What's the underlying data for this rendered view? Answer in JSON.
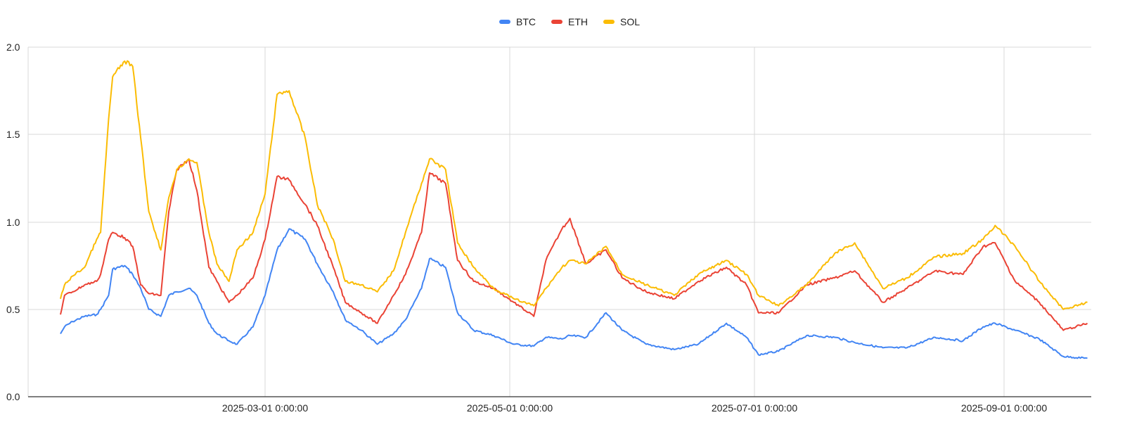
{
  "chart_data": {
    "type": "line",
    "title": "",
    "xlabel": "",
    "ylabel": "",
    "ylim": [
      0.0,
      2.0
    ],
    "grid": true,
    "legend_position": "top",
    "y_ticks": [
      "0.0",
      "0.5",
      "1.0",
      "1.5",
      "2.0"
    ],
    "x_ticks": [
      "2025-03-01 0:00:00",
      "2025-05-01 0:00:00",
      "2025-07-01 0:00:00",
      "2025-09-01 0:00:00"
    ],
    "x": [
      "2025-01-09",
      "2025-01-10",
      "2025-01-12",
      "2025-01-15",
      "2025-01-18",
      "2025-01-19",
      "2025-01-21",
      "2025-01-22",
      "2025-01-25",
      "2025-01-27",
      "2025-01-29",
      "2025-01-31",
      "2025-02-03",
      "2025-02-05",
      "2025-02-07",
      "2025-02-10",
      "2025-02-12",
      "2025-02-15",
      "2025-02-17",
      "2025-02-20",
      "2025-02-22",
      "2025-02-26",
      "2025-03-01",
      "2025-03-04",
      "2025-03-07",
      "2025-03-11",
      "2025-03-14",
      "2025-03-18",
      "2025-03-21",
      "2025-03-25",
      "2025-03-29",
      "2025-04-02",
      "2025-04-05",
      "2025-04-09",
      "2025-04-11",
      "2025-04-15",
      "2025-04-18",
      "2025-04-22",
      "2025-04-27",
      "2025-05-02",
      "2025-05-07",
      "2025-05-10",
      "2025-05-14",
      "2025-05-16",
      "2025-05-20",
      "2025-05-25",
      "2025-05-29",
      "2025-06-04",
      "2025-06-11",
      "2025-06-17",
      "2025-06-24",
      "2025-06-29",
      "2025-07-02",
      "2025-07-07",
      "2025-07-14",
      "2025-07-21",
      "2025-07-26",
      "2025-08-02",
      "2025-08-08",
      "2025-08-15",
      "2025-08-22",
      "2025-08-27",
      "2025-08-30",
      "2025-09-04",
      "2025-09-10",
      "2025-09-16",
      "2025-09-22"
    ],
    "series": [
      {
        "name": "BTC",
        "color": "#4285F4",
        "values": [
          0.36,
          0.4,
          0.43,
          0.46,
          0.47,
          0.5,
          0.58,
          0.73,
          0.75,
          0.7,
          0.62,
          0.5,
          0.46,
          0.58,
          0.6,
          0.62,
          0.58,
          0.42,
          0.36,
          0.32,
          0.3,
          0.4,
          0.58,
          0.84,
          0.96,
          0.9,
          0.76,
          0.6,
          0.44,
          0.38,
          0.3,
          0.36,
          0.44,
          0.62,
          0.79,
          0.74,
          0.48,
          0.38,
          0.35,
          0.3,
          0.29,
          0.34,
          0.33,
          0.35,
          0.34,
          0.48,
          0.38,
          0.3,
          0.27,
          0.3,
          0.42,
          0.34,
          0.24,
          0.26,
          0.35,
          0.34,
          0.31,
          0.28,
          0.28,
          0.34,
          0.32,
          0.4,
          0.42,
          0.38,
          0.33,
          0.23,
          0.22
        ]
      },
      {
        "name": "ETH",
        "color": "#EA4335",
        "values": [
          0.47,
          0.58,
          0.6,
          0.64,
          0.66,
          0.7,
          0.9,
          0.94,
          0.91,
          0.86,
          0.64,
          0.59,
          0.58,
          1.06,
          1.3,
          1.36,
          1.18,
          0.74,
          0.66,
          0.54,
          0.58,
          0.68,
          0.9,
          1.26,
          1.24,
          1.1,
          0.98,
          0.74,
          0.54,
          0.48,
          0.42,
          0.58,
          0.7,
          0.94,
          1.28,
          1.22,
          0.78,
          0.66,
          0.62,
          0.54,
          0.46,
          0.78,
          0.96,
          1.02,
          0.76,
          0.84,
          0.68,
          0.6,
          0.56,
          0.66,
          0.74,
          0.64,
          0.48,
          0.48,
          0.64,
          0.68,
          0.72,
          0.54,
          0.62,
          0.72,
          0.7,
          0.86,
          0.88,
          0.66,
          0.54,
          0.38,
          0.42
        ]
      },
      {
        "name": "SOL",
        "color": "#FBBC04",
        "values": [
          0.56,
          0.64,
          0.69,
          0.74,
          0.9,
          0.94,
          1.59,
          1.83,
          1.92,
          1.89,
          1.48,
          1.06,
          0.84,
          1.14,
          1.3,
          1.36,
          1.34,
          0.94,
          0.76,
          0.66,
          0.84,
          0.94,
          1.16,
          1.73,
          1.75,
          1.48,
          1.1,
          0.9,
          0.66,
          0.64,
          0.6,
          0.72,
          0.94,
          1.22,
          1.36,
          1.3,
          0.88,
          0.74,
          0.62,
          0.56,
          0.52,
          0.62,
          0.74,
          0.78,
          0.76,
          0.86,
          0.7,
          0.64,
          0.58,
          0.7,
          0.78,
          0.7,
          0.58,
          0.52,
          0.64,
          0.82,
          0.88,
          0.62,
          0.68,
          0.8,
          0.82,
          0.9,
          0.98,
          0.86,
          0.66,
          0.5,
          0.54
        ]
      }
    ]
  },
  "legend": {
    "items": [
      {
        "label": "BTC",
        "color": "#4285F4"
      },
      {
        "label": "ETH",
        "color": "#EA4335"
      },
      {
        "label": "SOL",
        "color": "#FBBC04"
      }
    ]
  },
  "axes": {
    "y_labels": [
      "2.0",
      "1.5",
      "1.0",
      "0.5",
      "0.0"
    ],
    "x_labels": [
      "2025-03-01 0:00:00",
      "2025-05-01 0:00:00",
      "2025-07-01 0:00:00",
      "2025-09-01 0:00:00"
    ]
  }
}
